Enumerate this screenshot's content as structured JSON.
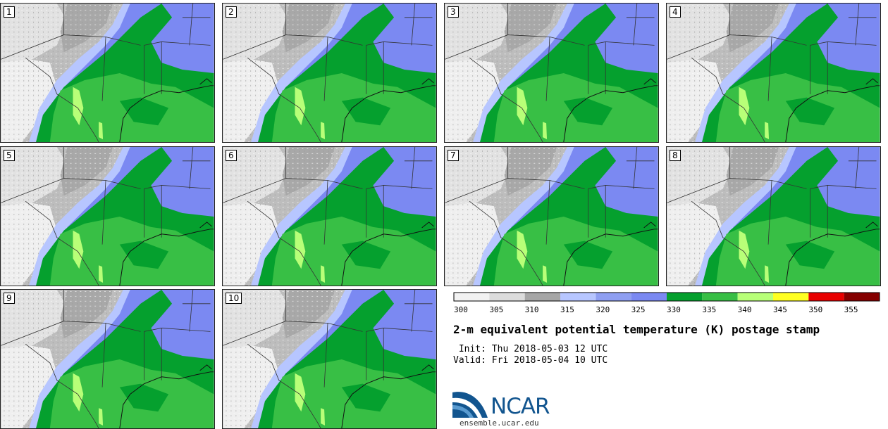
{
  "stamps": [
    {
      "label": "1"
    },
    {
      "label": "2"
    },
    {
      "label": "3"
    },
    {
      "label": "4"
    },
    {
      "label": "5"
    },
    {
      "label": "6"
    },
    {
      "label": "7"
    },
    {
      "label": "8"
    },
    {
      "label": "9"
    },
    {
      "label": "10"
    }
  ],
  "colorbar": {
    "colors": [
      "#f2f2f2",
      "#dcdcdc",
      "#a6a6a6",
      "#b7c6ff",
      "#8f9ff2",
      "#7b89f2",
      "#05a02e",
      "#38bf45",
      "#b8ff78",
      "#ffff22",
      "#e80000",
      "#850000"
    ],
    "tick_labels": [
      "300",
      "305",
      "310",
      "315",
      "320",
      "325",
      "330",
      "335",
      "340",
      "345",
      "350",
      "355"
    ]
  },
  "title": "2-m equivalent potential temperature (K) postage stamp",
  "init": " Init: Thu 2018-05-03 12 UTC",
  "valid": "Valid: Fri 2018-05-04 10 UTC",
  "logo": {
    "icon": "ncar-swoosh-icon",
    "wordmark": "NCAR",
    "url": "ensemble.ucar.edu",
    "color": "#12558f"
  }
}
